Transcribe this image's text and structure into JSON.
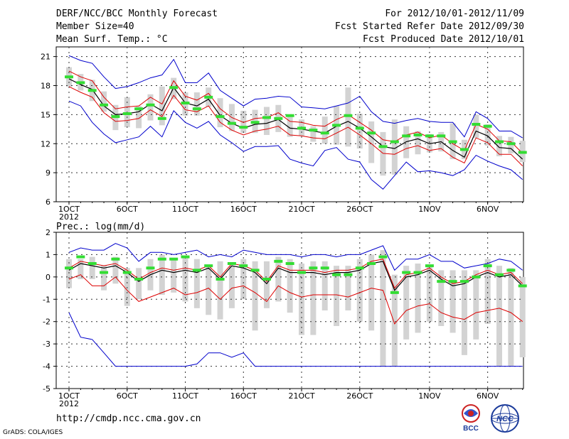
{
  "header": {
    "title": "DERF/NCC/BCC Monthly Forecast",
    "member_size": "Member Size=40",
    "variable": "Mean Surf. Temp.: °C",
    "period": "For 2012/10/01-2012/11/09",
    "start_date": "Fcst Started Refer Date 2012/09/30",
    "produced_date": "Fcst Produced Date 2012/10/01"
  },
  "footer": {
    "url": "http://cmdp.ncc.cma.gov.cn",
    "grads": "GrADS: COLA/IGES",
    "logo_bcc": "BCC",
    "logo_ncc": "NCC"
  },
  "colors": {
    "box": "#d3d3d3",
    "green": "#33dd33",
    "mean": "#000000",
    "std": "#dd0000",
    "extreme": "#0000cc",
    "grid": "#333333"
  },
  "chart_data": [
    {
      "type": "box-ensemble",
      "title": "Mean Surf. Temp.: °C",
      "xlabel": "",
      "ylabel": "",
      "x_tick_labels": [
        "1OCT",
        "6OCT",
        "11OCT",
        "16OCT",
        "21OCT",
        "26OCT",
        "1NOV",
        "6NOV"
      ],
      "x_tick_days": [
        1,
        6,
        11,
        16,
        21,
        26,
        32,
        37
      ],
      "year_label": "2012",
      "days": 40,
      "ylim": [
        6,
        22
      ],
      "yticks": [
        6,
        9,
        12,
        15,
        18,
        21
      ],
      "series": {
        "max": [
          21.1,
          20.6,
          20.3,
          18.9,
          17.7,
          17.9,
          18.3,
          18.8,
          19.1,
          20.7,
          18.3,
          18.3,
          19.3,
          17.5,
          16.7,
          15.9,
          16.6,
          16.7,
          16.9,
          16.8,
          15.8,
          15.7,
          15.6,
          15.9,
          16.2,
          16.9,
          15.3,
          14.3,
          14.1,
          14.4,
          14.6,
          14.3,
          14.2,
          14.2,
          12.7,
          15.3,
          14.6,
          13.3,
          13.3,
          12.6
        ],
        "upper": [
          19.5,
          18.9,
          18.5,
          16.8,
          15.6,
          15.8,
          15.9,
          16.8,
          16.1,
          18.5,
          16.9,
          16.5,
          17.2,
          15.6,
          14.7,
          14.2,
          14.6,
          14.7,
          15.2,
          14.3,
          14.2,
          13.9,
          13.8,
          14.5,
          15.0,
          14.2,
          13.4,
          12.4,
          12.2,
          12.9,
          13.2,
          12.6,
          12.9,
          12.0,
          11.3,
          14.0,
          13.5,
          12.3,
          12.2,
          11.0
        ],
        "mean": [
          18.7,
          18.1,
          17.6,
          15.9,
          15.0,
          15.1,
          15.3,
          16.1,
          15.4,
          17.8,
          16.2,
          15.9,
          16.6,
          14.9,
          14.1,
          13.6,
          14.0,
          14.1,
          14.5,
          13.6,
          13.5,
          13.3,
          13.1,
          13.8,
          14.3,
          13.6,
          12.7,
          11.7,
          11.5,
          12.2,
          12.5,
          12.0,
          12.2,
          11.3,
          10.6,
          13.3,
          12.8,
          11.6,
          11.5,
          10.4
        ],
        "lower": [
          17.9,
          17.3,
          16.8,
          15.2,
          14.3,
          14.4,
          14.6,
          15.5,
          14.8,
          17.0,
          15.5,
          15.3,
          15.9,
          14.2,
          13.4,
          12.9,
          13.3,
          13.5,
          13.8,
          12.9,
          12.8,
          12.6,
          12.5,
          13.1,
          13.7,
          12.9,
          12.0,
          11.0,
          10.9,
          11.5,
          11.8,
          11.3,
          11.5,
          10.6,
          10.0,
          12.6,
          12.1,
          10.9,
          10.9,
          9.7
        ],
        "min": [
          16.4,
          15.9,
          14.2,
          13.0,
          12.1,
          12.4,
          12.7,
          13.8,
          12.7,
          15.4,
          14.2,
          13.6,
          14.3,
          12.9,
          12.1,
          11.2,
          11.7,
          11.7,
          11.8,
          10.4,
          10.0,
          9.7,
          11.3,
          11.6,
          10.4,
          10.1,
          8.3,
          7.3,
          8.7,
          10.1,
          9.1,
          9.2,
          9.0,
          8.7,
          9.3,
          10.8,
          10.2,
          9.7,
          9.3,
          8.3
        ],
        "box_top": [
          19.9,
          19.2,
          18.6,
          17.4,
          16.0,
          16.8,
          15.9,
          17.1,
          17.9,
          18.8,
          17.3,
          17.3,
          17.8,
          16.7,
          16.1,
          15.4,
          15.5,
          15.8,
          16.0,
          15.0,
          14.5,
          13.8,
          14.8,
          15.9,
          17.8,
          15.1,
          14.3,
          13.2,
          14.5,
          13.8,
          13.3,
          13.0,
          13.2,
          14.1,
          12.4,
          15.0,
          14.0,
          12.8,
          12.7,
          12.3
        ],
        "box_bottom": [
          17.9,
          17.5,
          16.4,
          15.3,
          13.4,
          13.7,
          13.6,
          14.4,
          13.9,
          16.6,
          14.9,
          14.9,
          15.8,
          13.7,
          13.3,
          13.1,
          13.1,
          12.9,
          13.2,
          12.7,
          12.8,
          12.2,
          12.0,
          11.9,
          11.7,
          11.5,
          10.0,
          8.7,
          8.8,
          10.5,
          10.9,
          11.1,
          11.2,
          10.4,
          10.4,
          12.6,
          11.8,
          10.7,
          11.0,
          10.1
        ],
        "observed_green": [
          18.9,
          18.3,
          17.5,
          16.0,
          14.8,
          15.1,
          15.6,
          16.0,
          14.6,
          17.8,
          16.2,
          15.6,
          16.8,
          14.8,
          14.1,
          13.7,
          14.2,
          14.7,
          14.6,
          14.9,
          13.6,
          13.4,
          13.1,
          13.9,
          14.9,
          13.6,
          13.1,
          11.7,
          12.2,
          12.8,
          12.9,
          12.8,
          12.8,
          12.2,
          11.4,
          14.0,
          13.8,
          12.2,
          12.0,
          11.1
        ]
      }
    },
    {
      "type": "box-ensemble",
      "title": "Prec.: log(mm/d)",
      "xlabel": "",
      "ylabel": "",
      "x_tick_labels": [
        "1OCT",
        "6OCT",
        "11OCT",
        "16OCT",
        "21OCT",
        "26OCT",
        "1NOV",
        "6NOV"
      ],
      "x_tick_days": [
        1,
        6,
        11,
        16,
        21,
        26,
        32,
        37
      ],
      "year_label": "2012",
      "days": 40,
      "ylim": [
        -5,
        2
      ],
      "yticks": [
        -5,
        -4,
        -3,
        -2,
        -1,
        0,
        1,
        2
      ],
      "series": {
        "max": [
          1.1,
          1.3,
          1.2,
          1.2,
          1.5,
          1.3,
          0.7,
          1.1,
          1.1,
          1.0,
          1.1,
          1.2,
          0.9,
          1.0,
          0.9,
          1.2,
          1.1,
          1.0,
          1.0,
          1.0,
          0.9,
          1.0,
          1.0,
          0.9,
          1.0,
          1.0,
          1.2,
          1.4,
          0.3,
          0.8,
          0.8,
          1.0,
          0.7,
          0.7,
          0.4,
          0.5,
          0.6,
          0.8,
          0.7,
          0.3
        ],
        "upper": [
          0.4,
          0.7,
          0.6,
          0.5,
          0.6,
          0.3,
          -0.1,
          0.2,
          0.4,
          0.3,
          0.4,
          0.3,
          0.5,
          0.0,
          0.6,
          0.5,
          0.3,
          -0.2,
          0.5,
          0.3,
          0.3,
          0.3,
          0.2,
          0.3,
          0.3,
          0.4,
          0.7,
          0.8,
          -0.5,
          0.1,
          0.2,
          0.4,
          0.0,
          -0.3,
          -0.2,
          0.1,
          0.3,
          0.1,
          0.2,
          -0.3
        ],
        "mean": [
          0.3,
          0.6,
          0.5,
          0.4,
          0.5,
          0.2,
          -0.2,
          0.1,
          0.3,
          0.2,
          0.3,
          0.2,
          0.4,
          -0.1,
          0.5,
          0.4,
          0.2,
          -0.3,
          0.4,
          0.2,
          0.2,
          0.2,
          0.1,
          0.2,
          0.2,
          0.3,
          0.6,
          0.7,
          -0.6,
          0.0,
          0.1,
          0.3,
          -0.1,
          -0.4,
          -0.3,
          0.0,
          0.2,
          0.0,
          0.1,
          -0.4
        ],
        "lower": [
          -0.1,
          0.1,
          -0.4,
          -0.4,
          0.0,
          -0.6,
          -1.1,
          -0.9,
          -0.7,
          -0.5,
          -0.8,
          -0.7,
          -0.5,
          -1.0,
          -0.5,
          -0.4,
          -0.7,
          -1.1,
          -0.4,
          -0.7,
          -0.9,
          -0.8,
          -0.8,
          -0.8,
          -0.9,
          -0.7,
          -0.5,
          -0.6,
          -2.1,
          -1.5,
          -1.3,
          -1.2,
          -1.6,
          -1.8,
          -1.9,
          -1.6,
          -1.5,
          -1.4,
          -1.6,
          -2.0
        ],
        "min": [
          -1.6,
          -2.7,
          -2.8,
          -3.4,
          -4.0,
          -4.0,
          -4.0,
          -4.0,
          -4.0,
          -4.0,
          -4.0,
          -3.9,
          -3.4,
          -3.4,
          -3.6,
          -3.4,
          -4.0,
          -4.0,
          -4.0,
          -4.0,
          -4.0,
          -4.0,
          -4.0,
          -4.0,
          -4.0,
          -4.0,
          -4.0,
          -4.0,
          -4.0,
          -4.0,
          -4.0,
          -4.0,
          -4.0,
          -4.0,
          -4.0,
          -4.0,
          -4.0,
          -4.0,
          -4.0,
          -4.0
        ],
        "box_top": [
          0.8,
          0.8,
          0.9,
          0.5,
          0.9,
          0.4,
          0.4,
          0.8,
          1.0,
          0.8,
          0.9,
          0.8,
          0.5,
          0.7,
          0.5,
          0.8,
          0.7,
          0.7,
          0.9,
          0.8,
          0.6,
          0.7,
          0.7,
          0.5,
          0.5,
          0.8,
          1.0,
          1.2,
          0.1,
          0.5,
          0.6,
          0.5,
          0.3,
          0.3,
          0.3,
          0.3,
          0.8,
          0.5,
          0.4,
          0.0
        ],
        "box_bottom": [
          -0.5,
          -0.1,
          -0.1,
          -0.6,
          -0.3,
          -1.3,
          -1.0,
          -0.6,
          -0.8,
          -0.7,
          -1.1,
          -1.4,
          -1.7,
          -1.9,
          -1.4,
          -1.0,
          -2.4,
          -1.4,
          -1.1,
          -1.6,
          -2.6,
          -2.6,
          -1.5,
          -2.2,
          -1.5,
          -2.0,
          -2.4,
          -4.0,
          -4.0,
          -2.8,
          -2.5,
          -2.0,
          -2.2,
          -2.5,
          -3.5,
          -2.8,
          -2.1,
          -4.0,
          -4.0,
          -3.6
        ],
        "observed_green": [
          0.4,
          0.9,
          0.6,
          0.2,
          0.8,
          0.2,
          -0.1,
          0.4,
          0.8,
          0.8,
          0.9,
          0.3,
          0.5,
          -0.1,
          0.6,
          0.5,
          0.3,
          -0.1,
          0.7,
          0.6,
          0.2,
          0.4,
          0.4,
          0.1,
          0.1,
          0.4,
          0.6,
          0.9,
          -0.7,
          0.2,
          0.2,
          0.5,
          -0.2,
          -0.2,
          -0.2,
          0.0,
          0.5,
          0.1,
          0.3,
          -0.4
        ]
      }
    }
  ]
}
